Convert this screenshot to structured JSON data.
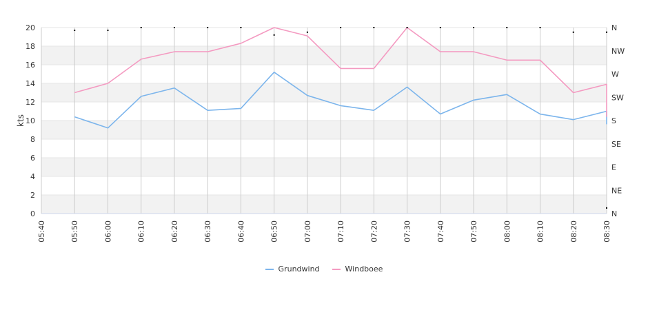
{
  "chart_data": {
    "type": "line",
    "title": "",
    "ylabel": "kts",
    "y2label": "",
    "ylim": [
      0,
      20
    ],
    "yticks": [
      0,
      2,
      4,
      6,
      8,
      10,
      12,
      14,
      16,
      18,
      20
    ],
    "y2ticks": [
      "N",
      "NE",
      "E",
      "SE",
      "S",
      "SW",
      "W",
      "NW",
      "N"
    ],
    "x_ticks": [
      "05:40",
      "05:50",
      "06:00",
      "06:10",
      "06:20",
      "06:30",
      "06:40",
      "06:50",
      "07:00",
      "07:10",
      "07:20",
      "07:30",
      "07:40",
      "07:50",
      "08:00",
      "08:10",
      "08:20",
      "08:30"
    ],
    "grid": true,
    "legend_position": "bottom",
    "series": [
      {
        "name": "Grundwind",
        "color": "#7cb5ec",
        "x": [
          "05:50",
          "06:00",
          "06:10",
          "06:20",
          "06:30",
          "06:40",
          "06:50",
          "07:00",
          "07:10",
          "07:20",
          "07:30",
          "07:40",
          "07:50",
          "08:00",
          "08:10",
          "08:20",
          "08:30",
          "08:30"
        ],
        "values": [
          10.4,
          9.2,
          12.6,
          13.5,
          11.1,
          11.3,
          15.2,
          12.7,
          11.6,
          11.1,
          13.6,
          10.7,
          12.2,
          12.8,
          10.7,
          10.1,
          11.0,
          9.6
        ]
      },
      {
        "name": "Windboee",
        "color": "#f49ac1",
        "x": [
          "05:50",
          "06:00",
          "06:10",
          "06:20",
          "06:30",
          "06:40",
          "06:50",
          "07:00",
          "07:10",
          "07:20",
          "07:30",
          "07:40",
          "07:50",
          "08:00",
          "08:10",
          "08:20",
          "08:30",
          "08:30"
        ],
        "values": [
          13.0,
          14.0,
          16.6,
          17.4,
          17.4,
          18.3,
          20.0,
          19.1,
          15.6,
          15.6,
          20.0,
          17.4,
          17.4,
          16.5,
          16.5,
          13.0,
          13.9,
          10.4
        ]
      }
    ],
    "direction_points": [
      {
        "x": "05:50",
        "value": 19.7
      },
      {
        "x": "06:00",
        "value": 19.7
      },
      {
        "x": "06:10",
        "value": 20.0
      },
      {
        "x": "06:20",
        "value": 20.0
      },
      {
        "x": "06:30",
        "value": 20.0
      },
      {
        "x": "06:40",
        "value": 20.0
      },
      {
        "x": "06:50",
        "value": 19.2
      },
      {
        "x": "07:00",
        "value": 19.5
      },
      {
        "x": "07:10",
        "value": 20.0
      },
      {
        "x": "07:20",
        "value": 20.0
      },
      {
        "x": "07:30",
        "value": 20.0
      },
      {
        "x": "07:40",
        "value": 20.0
      },
      {
        "x": "07:50",
        "value": 20.0
      },
      {
        "x": "08:00",
        "value": 20.0
      },
      {
        "x": "08:10",
        "value": 20.0
      },
      {
        "x": "08:20",
        "value": 19.5
      },
      {
        "x": "08:30",
        "value": 19.5
      },
      {
        "x": "08:30",
        "value": 0.6
      }
    ]
  }
}
